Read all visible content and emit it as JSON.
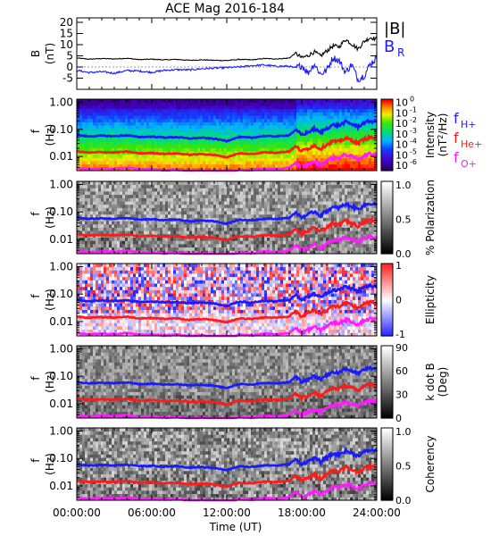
{
  "title": "ACE Mag 2016-184",
  "colors": {
    "B": "#000000",
    "BR": "#1a1aff",
    "fH": "#1a1aff",
    "fHe": "#ff1a1a",
    "fO": "#ff1aff",
    "axis": "#000000"
  },
  "chart_data": [
    {
      "id": "mag",
      "type": "line",
      "ylabel": "B",
      "yunit": "(nT)",
      "ylim": [
        -10,
        22
      ],
      "yticks": [
        "-5",
        "0",
        "5",
        "10",
        "15",
        "20"
      ],
      "yticks_values": [
        -5,
        0,
        5,
        10,
        15,
        20
      ],
      "legend": [
        "|B|",
        "B"
      ],
      "legend_sub": [
        "",
        "R"
      ],
      "series": [
        {
          "name": "|B|",
          "x": [
            0,
            1,
            2,
            3,
            4,
            5,
            6,
            7,
            8,
            9,
            10,
            11,
            12,
            13,
            14,
            15,
            16,
            17,
            17.5,
            18,
            18.5,
            19,
            19.5,
            20,
            20.5,
            21,
            21.5,
            22,
            22.5,
            23,
            23.5,
            24
          ],
          "values": [
            4,
            3.5,
            3.8,
            3.6,
            3.9,
            3.3,
            3.5,
            3.2,
            3.4,
            3.0,
            3.2,
            3.0,
            2.9,
            3.4,
            3.2,
            3.8,
            3.6,
            4.0,
            6.2,
            4.1,
            5.1,
            6.8,
            4.9,
            7.2,
            9.4,
            9.1,
            12.4,
            10.3,
            8.1,
            11.5,
            13.2,
            12.5
          ]
        },
        {
          "name": "B",
          "x": [
            0,
            1,
            2,
            3,
            4,
            5,
            6,
            7,
            8,
            9,
            10,
            11,
            12,
            13,
            14,
            15,
            16,
            17,
            17.5,
            18,
            18.5,
            19,
            19.5,
            20,
            20.5,
            21,
            21.5,
            22,
            22.5,
            23,
            23.5,
            24
          ],
          "values": [
            -1.5,
            -2.5,
            -2.1,
            -2.8,
            -1.6,
            -1.8,
            -2.4,
            -1.5,
            -1.2,
            -1.3,
            -0.8,
            -0.5,
            -0.3,
            0.0,
            0.6,
            0.9,
            0.3,
            0.4,
            -0.6,
            0.8,
            -2.7,
            1.4,
            -3.2,
            -1.4,
            4.2,
            2.8,
            -2.4,
            1.2,
            -5.6,
            -3.8,
            1.5,
            4.0
          ]
        }
      ]
    },
    {
      "id": "intensity",
      "type": "heatmap",
      "ylabel": "f",
      "yunit": "(Hz)",
      "ylog": true,
      "ylim": [
        0.003,
        1.3
      ],
      "yticks": [
        "0.01",
        "0.10",
        "1.00"
      ],
      "yticks_values": [
        0.01,
        0.1,
        1.0
      ],
      "colorbar_label": "Intensity",
      "colorbar_unit_prefix": "(nT",
      "colorbar_unit_sup": "2",
      "colorbar_unit_suffix": "/Hz)",
      "colorbar_ticks_base": "10",
      "colorbar_ticks_exp": [
        "0",
        "-1",
        "-2",
        "-3",
        "-4",
        "-5",
        "-6"
      ],
      "colorbar_ticks_values": [
        0,
        -1,
        -2,
        -3,
        -4,
        -5,
        -6
      ],
      "colorbar_range": [
        -6.5,
        0.3
      ],
      "legend_label": "f",
      "legend_subs": [
        "H+",
        "He+",
        "O+"
      ]
    },
    {
      "id": "polarization",
      "type": "heatmap",
      "ylabel": "f",
      "yunit": "(Hz)",
      "ylog": true,
      "ylim": [
        0.003,
        1.3
      ],
      "yticks": [
        "0.01",
        "0.10",
        "1.00"
      ],
      "yticks_values": [
        0.01,
        0.1,
        1.0
      ],
      "colorbar_label": "% Polarization",
      "colorbar_ticks": [
        "0.0",
        "0.5",
        "1.0"
      ],
      "colorbar_ticks_values": [
        0.0,
        0.5,
        1.0
      ],
      "colorbar_range": [
        0,
        1.05
      ]
    },
    {
      "id": "ellipticity",
      "type": "heatmap",
      "ylabel": "f",
      "yunit": "(Hz)",
      "ylog": true,
      "ylim": [
        0.003,
        1.3
      ],
      "yticks": [
        "0.01",
        "0.10",
        "1.00"
      ],
      "yticks_values": [
        0.01,
        0.1,
        1.0
      ],
      "colorbar_label": "Ellipticity",
      "colorbar_ticks": [
        "-1",
        "0",
        "1"
      ],
      "colorbar_ticks_values": [
        -1,
        0,
        1
      ],
      "colorbar_range": [
        -1.05,
        1.05
      ]
    },
    {
      "id": "kdotb",
      "type": "heatmap",
      "ylabel": "f",
      "yunit": "(Hz)",
      "ylog": true,
      "ylim": [
        0.003,
        1.3
      ],
      "yticks": [
        "0.01",
        "0.10",
        "1.00"
      ],
      "yticks_values": [
        0.01,
        0.1,
        1.0
      ],
      "colorbar_label": "k dot B",
      "colorbar_label2": "(Deg)",
      "colorbar_ticks": [
        "0",
        "30",
        "60",
        "90"
      ],
      "colorbar_ticks_values": [
        0,
        30,
        60,
        90
      ],
      "colorbar_range": [
        0,
        92
      ]
    },
    {
      "id": "coherency",
      "type": "heatmap",
      "ylabel": "f",
      "yunit": "(Hz)",
      "ylog": true,
      "ylim": [
        0.003,
        1.3
      ],
      "yticks": [
        "0.01",
        "0.10",
        "1.00"
      ],
      "yticks_values": [
        0.01,
        0.1,
        1.0
      ],
      "colorbar_label": "Coherency",
      "colorbar_ticks": [
        "0.0",
        "0.5",
        "1.0"
      ],
      "colorbar_ticks_values": [
        0.0,
        0.5,
        1.0
      ],
      "colorbar_range": [
        0,
        1.05
      ]
    }
  ],
  "gyrofrequencies": {
    "x": [
      0,
      1,
      2,
      3,
      4,
      5,
      6,
      7,
      8,
      9,
      10,
      11,
      12,
      13,
      14,
      15,
      16,
      17,
      17.5,
      18,
      18.5,
      19,
      19.5,
      20,
      20.5,
      21,
      21.5,
      22,
      22.5,
      23,
      23.5,
      24
    ],
    "fH": [
      0.061,
      0.055,
      0.058,
      0.056,
      0.06,
      0.052,
      0.054,
      0.05,
      0.052,
      0.046,
      0.049,
      0.045,
      0.037,
      0.052,
      0.049,
      0.057,
      0.055,
      0.061,
      0.093,
      0.063,
      0.078,
      0.104,
      0.075,
      0.11,
      0.145,
      0.139,
      0.19,
      0.158,
      0.124,
      0.176,
      0.202,
      0.191
    ],
    "fHe": [
      0.0153,
      0.0138,
      0.0145,
      0.014,
      0.015,
      0.013,
      0.0135,
      0.0125,
      0.013,
      0.0115,
      0.0123,
      0.0113,
      0.0093,
      0.013,
      0.0123,
      0.0143,
      0.0138,
      0.0153,
      0.0233,
      0.0158,
      0.0195,
      0.026,
      0.0188,
      0.0275,
      0.0363,
      0.0348,
      0.0475,
      0.0395,
      0.031,
      0.044,
      0.0505,
      0.0478
    ],
    "fO": [
      0.0038,
      0.0034,
      0.0036,
      0.0035,
      0.0038,
      0.0033,
      0.0034,
      0.0031,
      0.0033,
      0.0029,
      0.0031,
      0.0028,
      0.0023,
      0.0033,
      0.0031,
      0.0036,
      0.0034,
      0.0038,
      0.0058,
      0.0039,
      0.0049,
      0.0065,
      0.0047,
      0.0069,
      0.0091,
      0.0087,
      0.0119,
      0.0099,
      0.0078,
      0.011,
      0.0126,
      0.0119
    ]
  },
  "xaxis": {
    "label": "Time (UT)",
    "xlim": [
      0,
      24
    ],
    "tick_values": [
      0,
      6,
      12,
      18,
      24
    ],
    "ticks": [
      "00:00:00",
      "06:00:00",
      "12:00:00",
      "18:00:00",
      "24:00:00"
    ]
  }
}
